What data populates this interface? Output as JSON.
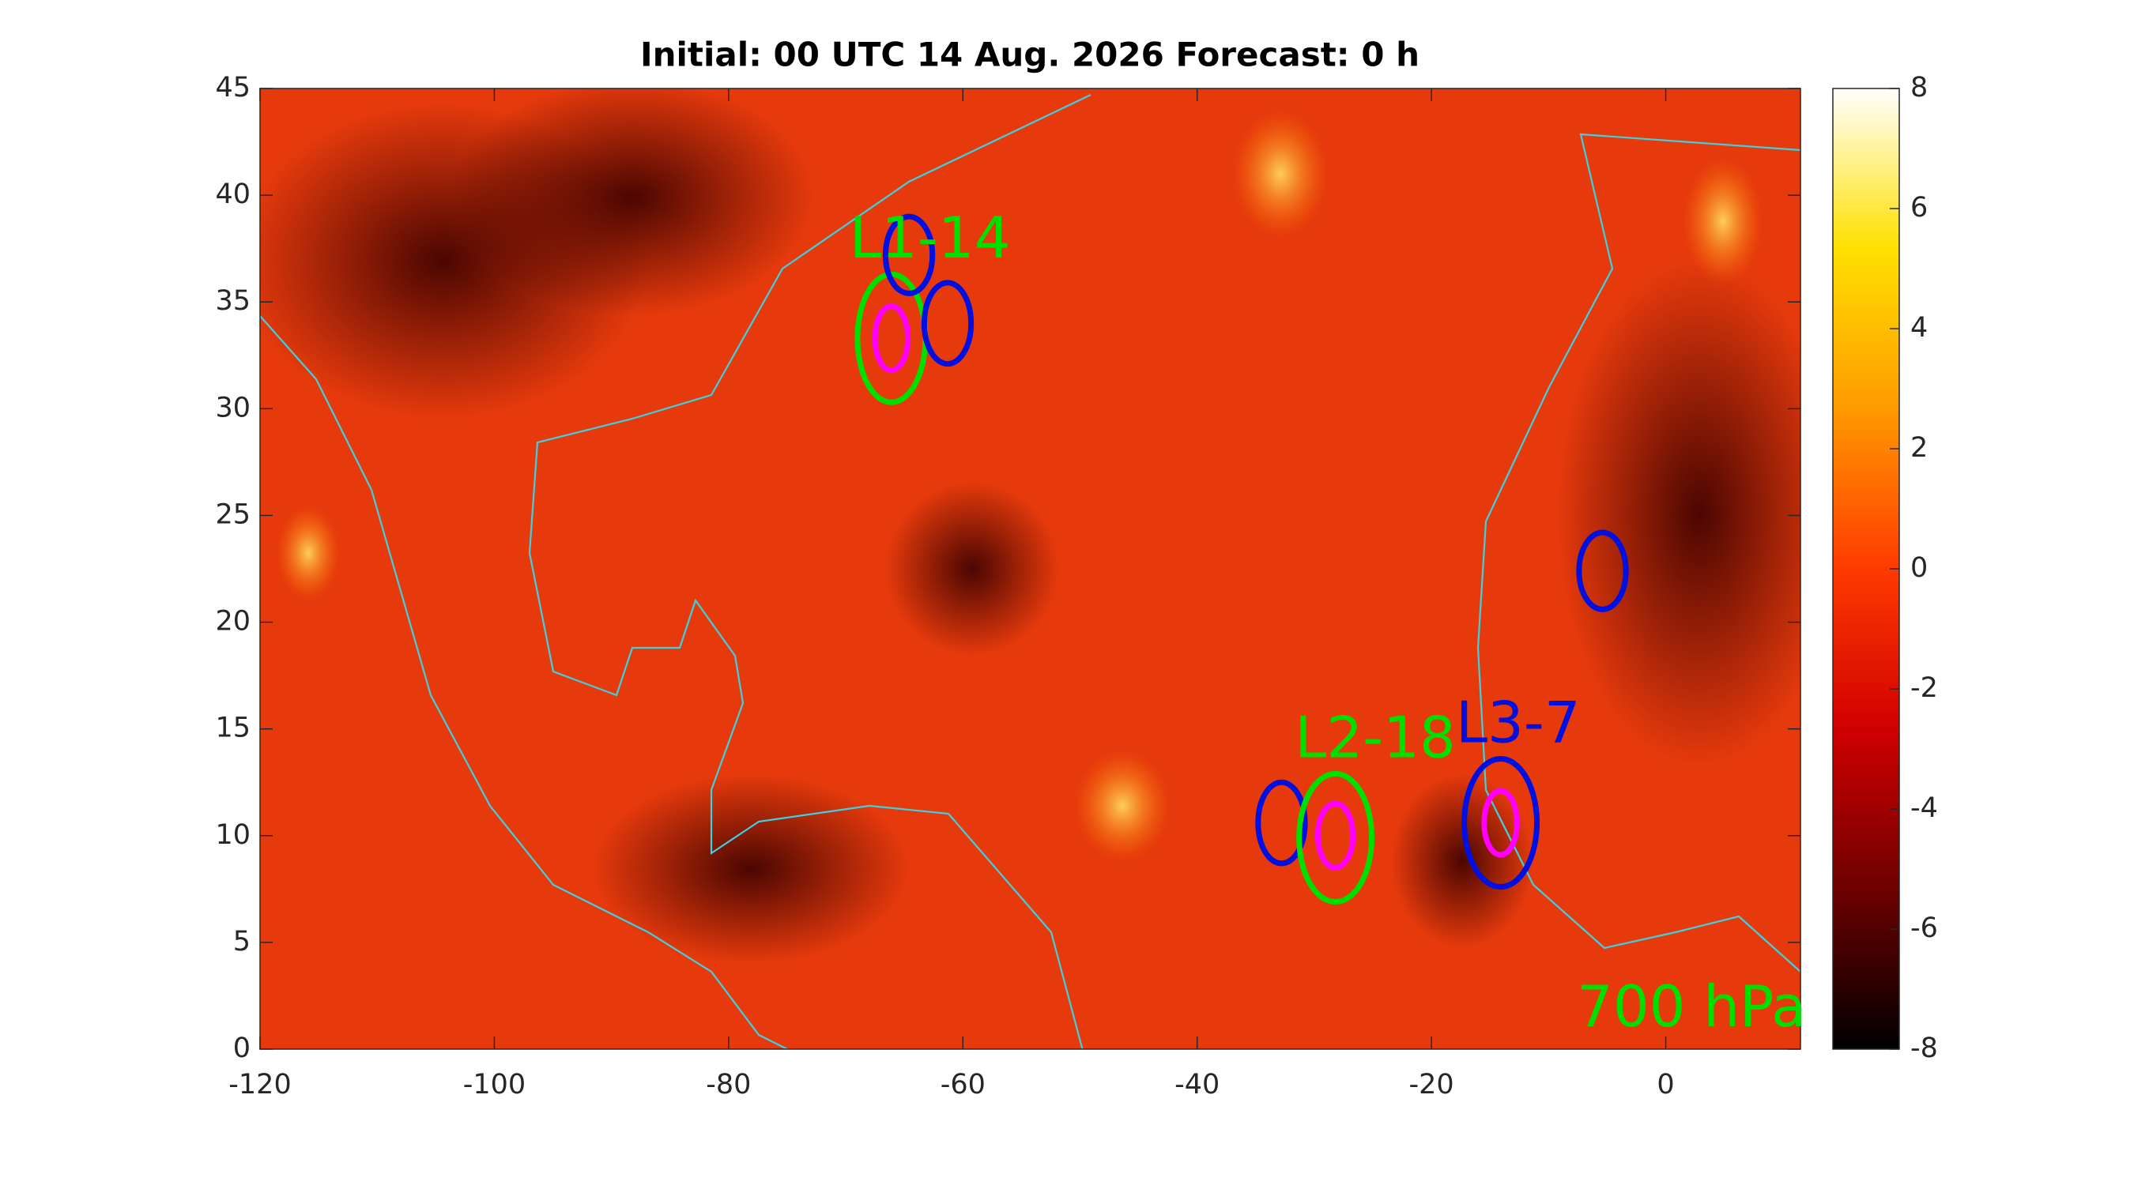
{
  "chart_data": {
    "type": "map",
    "title": "Initial: 00 UTC 14 Aug. 2026 Forecast: 0 h",
    "xlim": [
      -120,
      11.5
    ],
    "ylim": [
      0,
      45
    ],
    "xticks": [
      -120,
      -100,
      -80,
      -60,
      -40,
      -20,
      0
    ],
    "yticks": [
      0,
      5,
      10,
      15,
      20,
      25,
      30,
      35,
      40,
      45
    ],
    "colorbar": {
      "clim": [
        -8,
        8
      ],
      "ticks": [
        -8,
        -6,
        -4,
        -2,
        0,
        2,
        4,
        6,
        8
      ],
      "colormap": [
        "#000000",
        "#6e0000",
        "#d00000",
        "#ff3a00",
        "#ff9a00",
        "#ffe000",
        "#ffffff"
      ]
    },
    "systems": [
      {
        "lon": -66.1,
        "lat": 33.3,
        "rx": 2.9,
        "ry": 3.0,
        "color": "#00e000"
      },
      {
        "lon": -64.6,
        "lat": 37.2,
        "rx": 2.0,
        "ry": 1.8,
        "color": "#0010e0"
      },
      {
        "lon": -61.3,
        "lat": 34.0,
        "rx": 2.0,
        "ry": 1.9,
        "color": "#0010e0"
      },
      {
        "lon": -66.1,
        "lat": 33.3,
        "rx": 1.4,
        "ry": 1.5,
        "color": "#ff00ff"
      },
      {
        "lon": -5.4,
        "lat": 22.4,
        "rx": 2.0,
        "ry": 1.8,
        "color": "#0010e0"
      },
      {
        "lon": -32.8,
        "lat": 10.6,
        "rx": 2.0,
        "ry": 1.9,
        "color": "#0010e0"
      },
      {
        "lon": -28.2,
        "lat": 9.9,
        "rx": 3.1,
        "ry": 3.0,
        "color": "#00e000"
      },
      {
        "lon": -28.2,
        "lat": 10.0,
        "rx": 1.5,
        "ry": 1.5,
        "color": "#ff00ff"
      },
      {
        "lon": -14.1,
        "lat": 10.6,
        "rx": 3.1,
        "ry": 3.0,
        "color": "#0010e0"
      },
      {
        "lon": -14.1,
        "lat": 10.6,
        "rx": 1.4,
        "ry": 1.5,
        "color": "#ff00ff"
      }
    ],
    "annotations": [
      {
        "text": "L1-14",
        "lon": -62.8,
        "lat": 37.8,
        "color": "#00e000"
      },
      {
        "text": "L2-18",
        "lon": -24.8,
        "lat": 14.4,
        "color": "#00e000"
      },
      {
        "text": "L3-7",
        "lon": -12.6,
        "lat": 15.1,
        "color": "#0010e0"
      },
      {
        "text": "700 hPa",
        "lon": 2.2,
        "lat": 1.8,
        "color": "#00e000"
      }
    ]
  }
}
